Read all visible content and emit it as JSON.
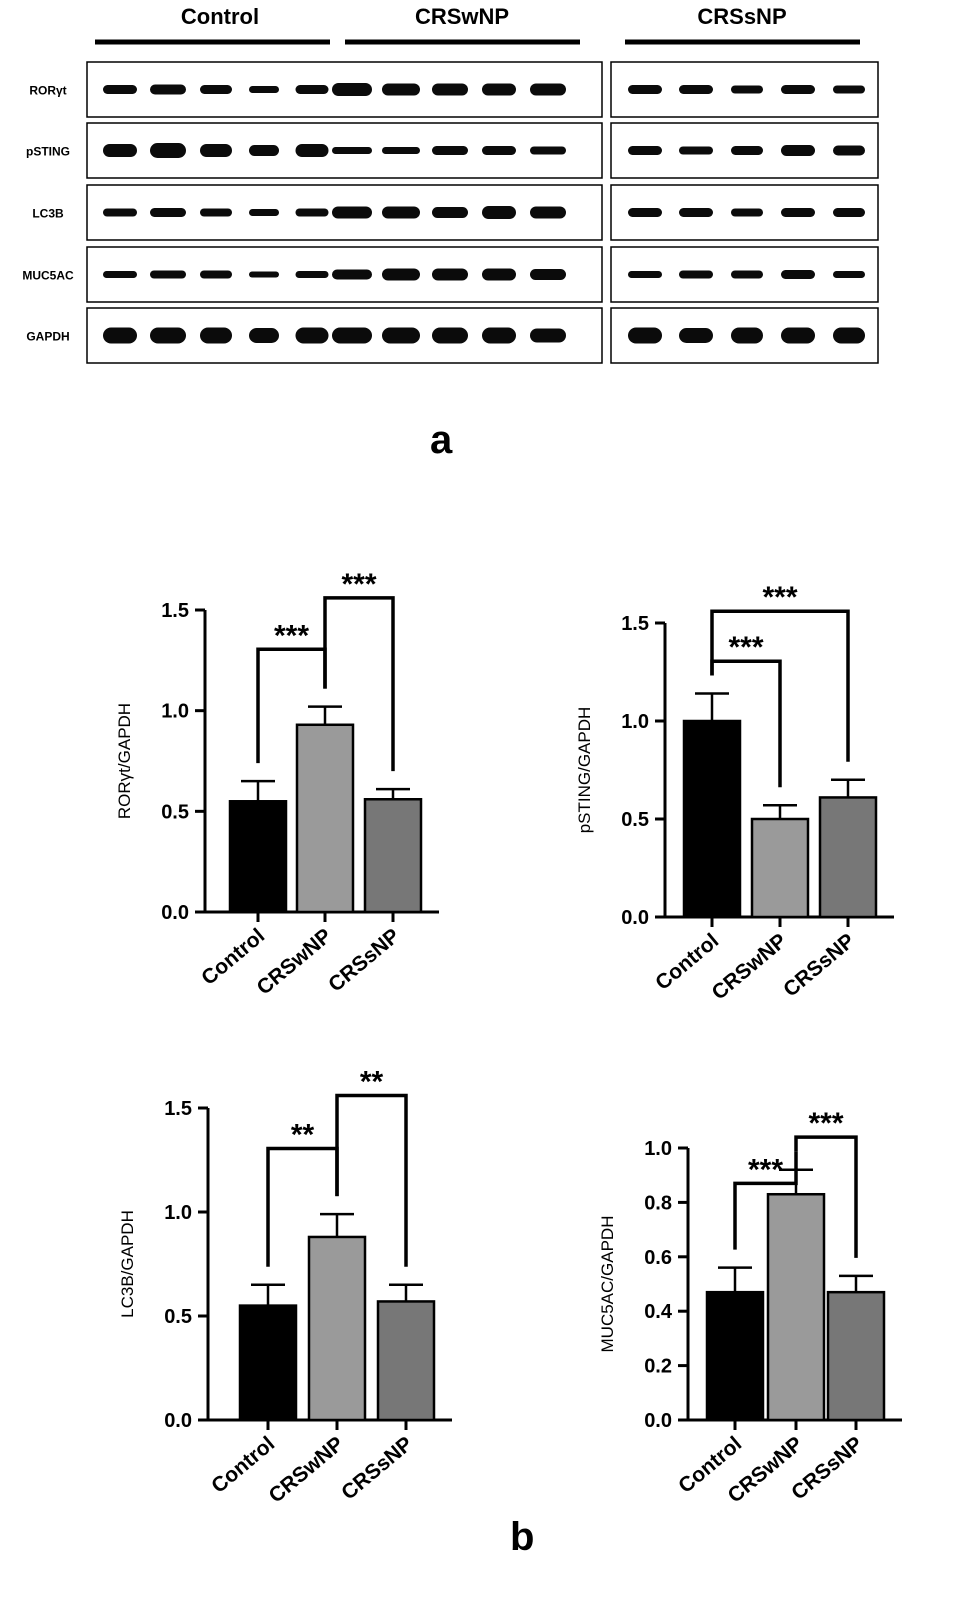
{
  "western_blot": {
    "groups": [
      "Control",
      "CRSwNP",
      "CRSsNP"
    ],
    "proteins": [
      "RORγt",
      "pSTING",
      "LC3B",
      "MUC5AC",
      "GAPDH"
    ],
    "lanes_per_group": 5
  },
  "panel_labels": {
    "a": "a",
    "b": "b"
  },
  "chart_data": [
    {
      "type": "bar",
      "categories": [
        "Control",
        "CRSwNP",
        "CRSsNP"
      ],
      "values": [
        0.55,
        0.93,
        0.56
      ],
      "errors": [
        0.1,
        0.09,
        0.05
      ],
      "ylabel": "RORγt/GAPDH",
      "ylim": [
        0,
        1.5
      ],
      "yticks": [
        "0.0",
        "0.5",
        "1.0",
        "1.5"
      ],
      "colors": [
        "#000000",
        "#9a9a9a",
        "#777777"
      ],
      "significance": [
        {
          "from": 0,
          "to": 1,
          "label": "***",
          "level": 1
        },
        {
          "from": 1,
          "to": 2,
          "label": "***",
          "level": 2
        }
      ]
    },
    {
      "type": "bar",
      "categories": [
        "Control",
        "CRSwNP",
        "CRSsNP"
      ],
      "values": [
        1.0,
        0.5,
        0.61
      ],
      "errors": [
        0.14,
        0.07,
        0.09
      ],
      "ylabel": "pSTING/GAPDH",
      "ylim": [
        0,
        1.5
      ],
      "yticks": [
        "0.0",
        "0.5",
        "1.0",
        "1.5"
      ],
      "colors": [
        "#000000",
        "#9a9a9a",
        "#777777"
      ],
      "significance": [
        {
          "from": 0,
          "to": 1,
          "label": "***",
          "level": 1
        },
        {
          "from": 0,
          "to": 2,
          "label": "***",
          "level": 2
        }
      ]
    },
    {
      "type": "bar",
      "categories": [
        "Control",
        "CRSwNP",
        "CRSsNP"
      ],
      "values": [
        0.55,
        0.88,
        0.57
      ],
      "errors": [
        0.1,
        0.11,
        0.08
      ],
      "ylabel": "LC3B/GAPDH",
      "ylim": [
        0,
        1.5
      ],
      "yticks": [
        "0.0",
        "0.5",
        "1.0",
        "1.5"
      ],
      "colors": [
        "#000000",
        "#9a9a9a",
        "#777777"
      ],
      "significance": [
        {
          "from": 0,
          "to": 1,
          "label": "**",
          "level": 1
        },
        {
          "from": 1,
          "to": 2,
          "label": "**",
          "level": 2
        }
      ]
    },
    {
      "type": "bar",
      "categories": [
        "Control",
        "CRSwNP",
        "CRSsNP"
      ],
      "values": [
        0.47,
        0.83,
        0.47
      ],
      "errors": [
        0.09,
        0.09,
        0.06
      ],
      "ylabel": "MUC5AC/GAPDH",
      "ylim": [
        0,
        1.0
      ],
      "yticks": [
        "0.0",
        "0.2",
        "0.4",
        "0.6",
        "0.8",
        "1.0"
      ],
      "colors": [
        "#000000",
        "#9a9a9a",
        "#777777"
      ],
      "significance": [
        {
          "from": 0,
          "to": 1,
          "label": "***",
          "level": 1
        },
        {
          "from": 1,
          "to": 2,
          "label": "***",
          "level": 2
        }
      ]
    }
  ]
}
